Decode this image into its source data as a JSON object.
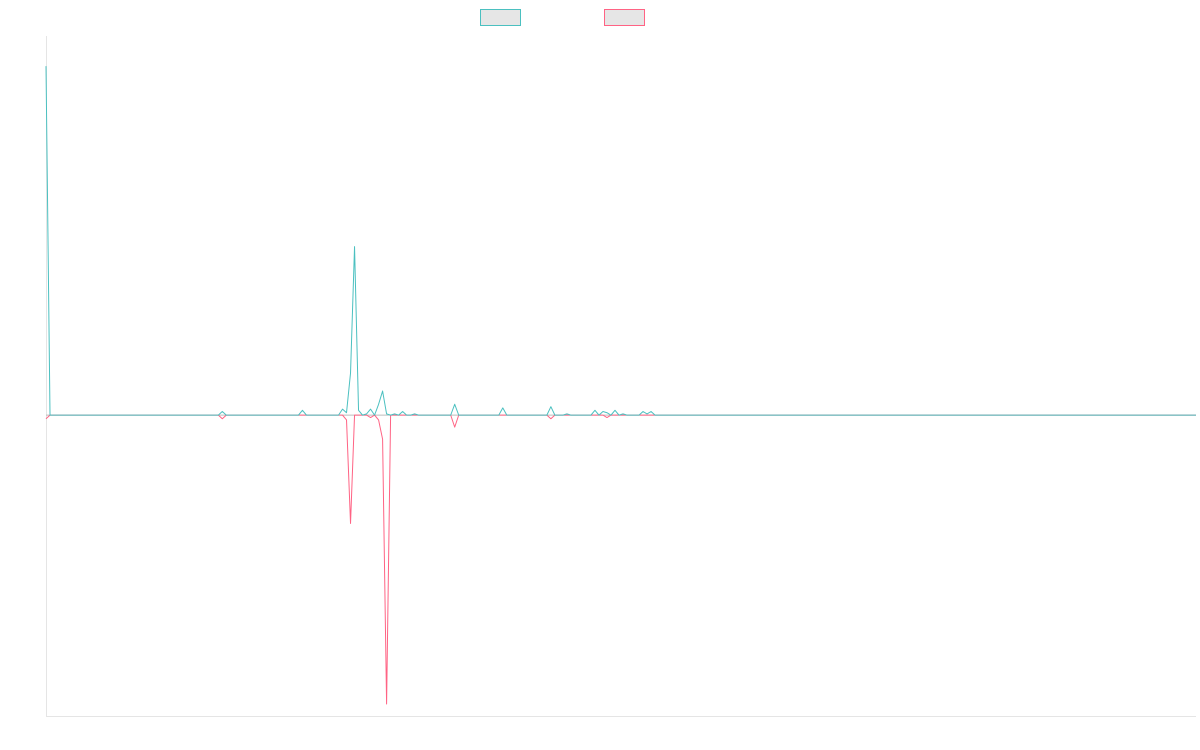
{
  "chart_data": {
    "type": "line",
    "title": "",
    "xlabel": "",
    "ylabel": "",
    "grid": false,
    "legend_position": "top",
    "x": [
      0,
      1,
      2,
      3,
      4,
      5,
      6,
      7,
      8,
      9,
      10,
      11,
      12,
      13,
      14,
      15,
      16,
      17,
      18,
      19,
      20,
      21,
      22,
      23,
      24,
      25,
      26,
      27,
      28,
      29,
      30,
      31,
      32,
      33,
      34,
      35,
      36,
      37,
      38,
      39,
      40,
      41,
      42,
      43,
      44,
      45,
      46,
      47,
      48,
      49,
      50,
      51,
      52,
      53,
      54,
      55,
      56,
      57,
      58,
      59,
      60,
      61,
      62,
      63,
      64,
      65,
      66,
      67,
      68,
      69,
      70,
      71,
      72,
      73,
      74,
      75,
      76,
      77,
      78,
      79,
      80,
      81,
      82,
      83,
      84,
      85,
      86,
      87,
      88,
      89,
      90,
      91,
      92,
      93,
      94,
      95,
      96,
      97,
      98,
      99,
      100,
      101,
      102,
      103,
      104,
      105,
      106,
      107,
      108,
      109,
      110,
      111,
      112,
      113,
      114,
      115,
      116,
      117,
      118,
      119,
      120,
      121,
      122,
      123,
      124,
      125,
      126,
      127,
      128,
      129,
      130,
      131,
      132,
      133,
      134,
      135,
      136,
      137,
      138,
      139,
      140,
      141,
      142,
      143,
      144,
      145,
      146,
      147,
      148,
      149,
      150,
      151,
      152,
      153,
      154,
      155,
      156,
      157,
      158,
      159,
      160,
      161,
      162,
      163,
      164,
      165,
      166,
      167,
      168,
      169,
      170,
      171,
      172,
      173,
      174,
      175,
      176,
      177,
      178,
      179,
      180,
      181,
      182,
      183,
      184,
      185,
      186,
      187,
      188,
      189,
      190,
      191,
      192,
      193,
      194,
      195,
      196,
      197,
      198,
      199,
      200,
      201,
      202,
      203,
      204,
      205,
      206,
      207,
      208,
      209,
      210,
      211,
      212,
      213,
      214,
      215,
      216,
      217,
      218,
      219,
      220,
      221,
      222,
      223,
      224,
      225,
      226,
      227,
      228,
      229,
      230,
      231,
      232,
      233,
      234,
      235,
      236,
      237,
      238,
      239,
      240,
      241,
      242,
      243,
      244,
      245,
      246,
      247,
      248,
      249,
      250,
      251,
      252,
      253,
      254,
      255,
      256,
      257,
      258,
      259,
      260,
      261,
      262,
      263,
      264,
      265,
      266,
      267,
      268,
      269,
      270,
      271,
      272,
      273,
      274,
      275,
      276,
      277,
      278,
      279,
      280,
      281,
      282,
      283,
      284,
      285,
      286,
      287
    ],
    "xlim": [
      0,
      287
    ],
    "ylim": [
      -250,
      315
    ],
    "series": [
      {
        "name": "",
        "color": "#4bc0c0",
        "values": [
          290,
          0,
          0,
          0,
          0,
          0,
          0,
          0,
          0,
          0,
          0,
          0,
          0,
          0,
          0,
          0,
          0,
          0,
          0,
          0,
          0,
          0,
          0,
          0,
          0,
          0,
          0,
          0,
          0,
          0,
          0,
          0,
          0,
          0,
          0,
          0,
          0,
          0,
          0,
          0,
          0,
          0,
          0,
          0,
          3,
          0,
          0,
          0,
          0,
          0,
          0,
          0,
          0,
          0,
          0,
          0,
          0,
          0,
          0,
          0,
          0,
          0,
          0,
          0,
          4,
          0,
          0,
          0,
          0,
          0,
          0,
          0,
          0,
          0,
          5,
          2,
          35,
          140,
          4,
          0,
          1,
          5,
          0,
          9,
          20,
          1,
          0,
          1,
          0,
          3,
          0,
          0,
          1,
          0,
          0,
          0,
          0,
          0,
          0,
          0,
          0,
          0,
          9,
          0,
          0,
          0,
          0,
          0,
          0,
          0,
          0,
          0,
          0,
          0,
          6,
          0,
          0,
          0,
          0,
          0,
          0,
          0,
          0,
          0,
          0,
          0,
          7,
          0,
          0,
          0,
          1,
          0,
          0,
          0,
          0,
          0,
          0,
          4,
          0,
          3,
          2,
          0,
          4,
          0,
          1,
          0,
          0,
          0,
          0,
          3,
          1,
          3,
          0,
          0,
          0,
          0,
          0,
          0,
          0,
          0,
          0,
          0,
          0,
          0,
          0,
          0,
          0,
          0,
          0,
          0,
          0,
          0,
          0,
          0,
          0,
          0,
          0,
          0,
          0,
          0,
          0,
          0,
          0,
          0,
          0,
          0,
          0,
          0,
          0,
          0,
          0,
          0,
          0,
          0,
          0,
          0,
          0,
          0,
          0,
          0,
          0,
          0,
          0,
          0,
          0,
          0,
          0,
          0,
          0,
          0,
          0,
          0,
          0,
          0,
          0,
          0,
          0,
          0,
          0,
          0,
          0,
          0,
          0,
          0,
          0,
          0,
          0,
          0,
          0,
          0,
          0,
          0,
          0,
          0,
          0,
          0,
          0,
          0,
          0,
          0,
          0,
          0,
          0,
          0,
          0,
          0,
          0,
          0,
          0,
          0,
          0,
          0,
          0,
          0,
          0,
          0,
          0,
          0,
          0,
          0,
          0,
          0,
          0,
          0,
          0,
          0,
          0,
          0,
          0,
          0,
          0,
          0,
          0,
          0,
          0,
          0,
          0,
          0,
          0,
          0,
          0,
          0,
          0,
          0,
          0,
          0,
          0,
          0
        ]
      },
      {
        "name": "",
        "color": "#ff6384",
        "values": [
          -3,
          0,
          0,
          0,
          0,
          0,
          0,
          0,
          0,
          0,
          0,
          0,
          0,
          0,
          0,
          0,
          0,
          0,
          0,
          0,
          0,
          0,
          0,
          0,
          0,
          0,
          0,
          0,
          0,
          0,
          0,
          0,
          0,
          0,
          0,
          0,
          0,
          0,
          0,
          0,
          0,
          0,
          0,
          0,
          -3,
          0,
          0,
          0,
          0,
          0,
          0,
          0,
          0,
          0,
          0,
          0,
          0,
          0,
          0,
          0,
          0,
          0,
          0,
          0,
          0,
          0,
          0,
          0,
          0,
          0,
          0,
          0,
          0,
          0,
          0,
          -4,
          -90,
          0,
          0,
          0,
          0,
          -2,
          0,
          -4,
          -20,
          -240,
          0,
          0,
          0,
          0,
          0,
          0,
          0,
          0,
          0,
          0,
          0,
          0,
          0,
          0,
          0,
          0,
          -10,
          0,
          0,
          0,
          0,
          0,
          0,
          0,
          0,
          0,
          0,
          0,
          0,
          0,
          0,
          0,
          0,
          0,
          0,
          0,
          0,
          0,
          0,
          0,
          -3,
          0,
          0,
          0,
          0,
          0,
          0,
          0,
          0,
          0,
          0,
          0,
          0,
          0,
          -2,
          0,
          0,
          0,
          0,
          0,
          0,
          0,
          0,
          0,
          0,
          0,
          0,
          0,
          0,
          0,
          0,
          0,
          0,
          0,
          0,
          0,
          0,
          0,
          0,
          0,
          0,
          0,
          0,
          0,
          0,
          0,
          0,
          0,
          0,
          0,
          0,
          0,
          0,
          0,
          0,
          0,
          0,
          0,
          0,
          0,
          0,
          0,
          0,
          0,
          0,
          0,
          0,
          0,
          0,
          0,
          0,
          0,
          0,
          0,
          0,
          0,
          0,
          0,
          0,
          0,
          0,
          0,
          0,
          0,
          0,
          0,
          0,
          0,
          0,
          0,
          0,
          0,
          0,
          0,
          0,
          0,
          0,
          0,
          0,
          0,
          0,
          0,
          0,
          0,
          0,
          0,
          0,
          0,
          0,
          0,
          0,
          0,
          0,
          0,
          0,
          0,
          0,
          0,
          0,
          0,
          0,
          0,
          0,
          0,
          0,
          0,
          0,
          0,
          0,
          0,
          0,
          0,
          0,
          0,
          0,
          0,
          0,
          0,
          0,
          0,
          0,
          0,
          0,
          0,
          0,
          0,
          0,
          0,
          0,
          0,
          0,
          0,
          0,
          0,
          0,
          0,
          0,
          0,
          0,
          0,
          0,
          0
        ]
      }
    ]
  }
}
